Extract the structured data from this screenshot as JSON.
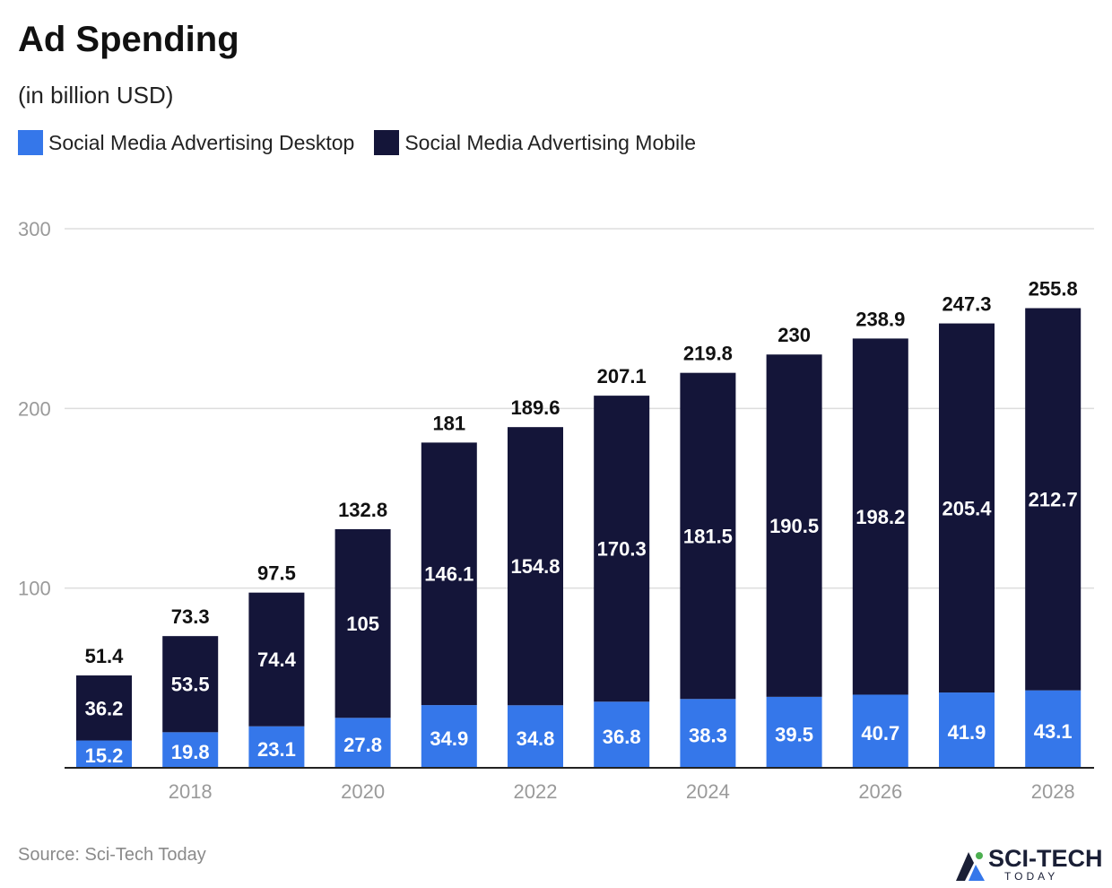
{
  "colors": {
    "desktop": "#3577EA",
    "mobile": "#141539",
    "grid": "#dddddd",
    "axis": "#222222",
    "tick": "#9a9a9a"
  },
  "chart_data": {
    "type": "bar",
    "stacked": true,
    "title": "Ad Spending",
    "subtitle": "(in billion USD)",
    "x": [
      2017,
      2018,
      2019,
      2020,
      2021,
      2022,
      2023,
      2024,
      2025,
      2026,
      2027,
      2028
    ],
    "xtick_labels": [
      "2018",
      "2020",
      "2022",
      "2024",
      "2026",
      "2028"
    ],
    "ytick_labels": [
      "100",
      "200",
      "300"
    ],
    "ylim": [
      0,
      300
    ],
    "series": [
      {
        "name": "Social Media Advertising Desktop",
        "values": [
          15.2,
          19.8,
          23.1,
          27.8,
          34.9,
          34.8,
          36.8,
          38.3,
          39.5,
          40.7,
          41.9,
          43.1
        ]
      },
      {
        "name": "Social Media Advertising Mobile",
        "values": [
          36.2,
          53.5,
          74.4,
          105,
          146.1,
          154.8,
          170.3,
          181.5,
          190.5,
          198.2,
          205.4,
          212.7
        ]
      }
    ],
    "desktop_labels": [
      "15.2",
      "19.8",
      "23.1",
      "27.8",
      "34.9",
      "34.8",
      "36.8",
      "38.3",
      "39.5",
      "40.7",
      "41.9",
      "43.1"
    ],
    "mobile_labels": [
      "36.2",
      "53.5",
      "74.4",
      "105",
      "146.1",
      "154.8",
      "170.3",
      "181.5",
      "190.5",
      "198.2",
      "205.4",
      "212.7"
    ],
    "total_labels": [
      "51.4",
      "73.3",
      "97.5",
      "132.8",
      "181",
      "189.6",
      "207.1",
      "219.8",
      "230",
      "238.9",
      "247.3",
      "255.8"
    ],
    "legend_position": "top-left",
    "grid": true
  },
  "source": "Source: Sci-Tech Today",
  "logo": {
    "text": "SCI-TECH",
    "sub": "TODAY"
  }
}
